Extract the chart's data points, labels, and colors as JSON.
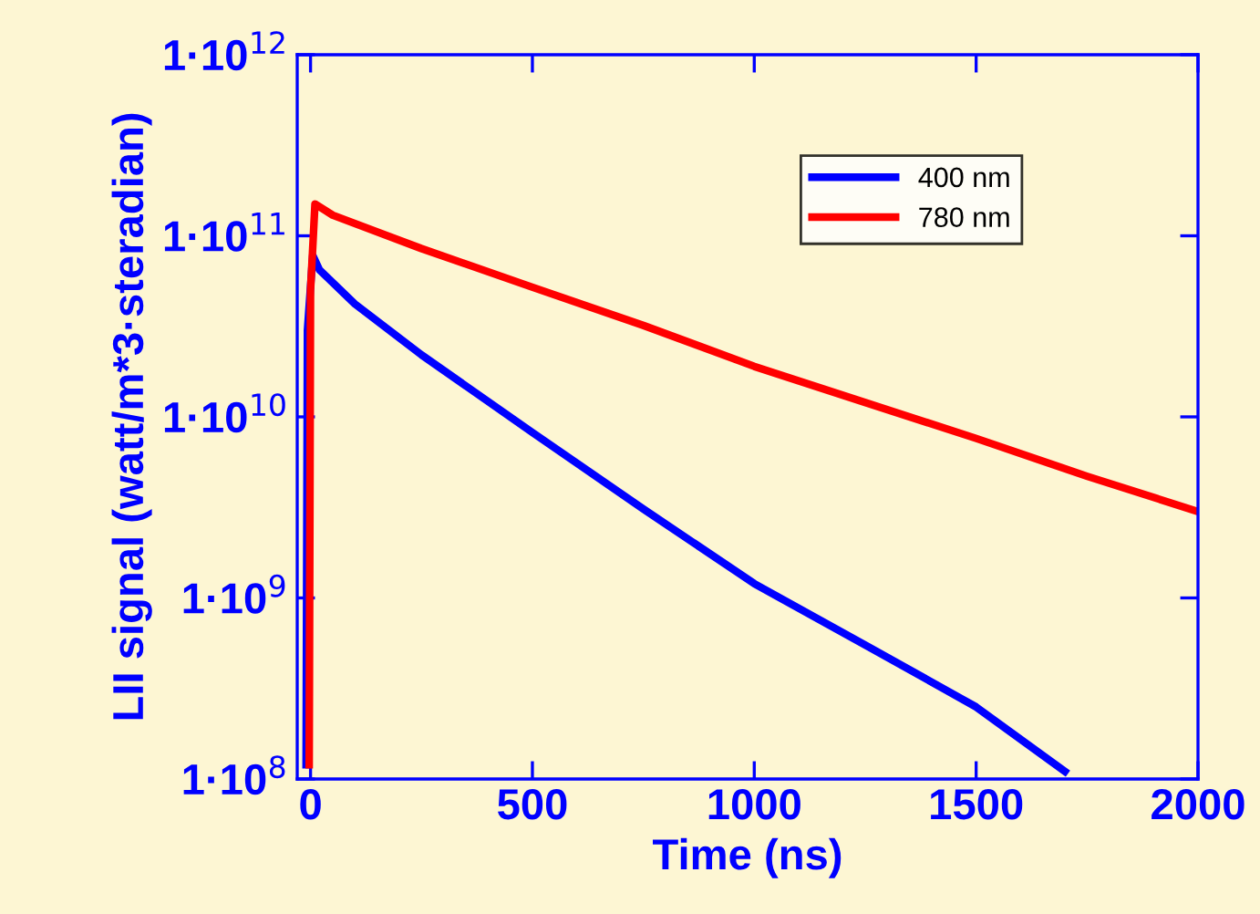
{
  "chart_data": {
    "type": "line",
    "xlabel": "Time (ns)",
    "ylabel": "LII signal (watt/m*3·steradian)",
    "log": "y",
    "xlim": [
      -30,
      2000
    ],
    "xticks": [
      0,
      500,
      1000,
      1500,
      2000
    ],
    "ylim": [
      100000000.0,
      1000000000000.0
    ],
    "yticks": [
      {
        "value": 100000000.0,
        "label": "1·10$^{8}$"
      },
      {
        "value": 1000000000.0,
        "label": "1·10$^{9}$"
      },
      {
        "value": 10000000000.0,
        "label": "1·10$^{10}$"
      },
      {
        "value": 100000000000.0,
        "label": "1·10$^{11}$"
      },
      {
        "value": 1000000000000.0,
        "label": "1·10$^{12}$"
      }
    ],
    "legend": "top right",
    "grid": false,
    "series": [
      {
        "name": "400 nm",
        "color": "#0000ff",
        "x": [
          -10,
          -7,
          5,
          20,
          100,
          250,
          500,
          750,
          1000,
          1250,
          1500,
          1700
        ],
        "values": [
          120000000.0,
          30000000000.0,
          78000000000.0,
          65000000000.0,
          42000000000.0,
          22000000000.0,
          8200000000.0,
          3100000000.0,
          1200000000.0,
          550000000.0,
          250000000.0,
          110000000.0
        ]
      },
      {
        "name": "780 nm",
        "color": "#ff0000",
        "x": [
          -3,
          0,
          10,
          50,
          250,
          500,
          750,
          1000,
          1250,
          1500,
          1750,
          2000
        ],
        "values": [
          120000000.0,
          50000000000.0,
          150000000000.0,
          130000000000.0,
          85000000000.0,
          52000000000.0,
          32000000000.0,
          19000000000.0,
          12000000000.0,
          7600000000.0,
          4700000000.0,
          3000000000.0
        ]
      }
    ]
  }
}
